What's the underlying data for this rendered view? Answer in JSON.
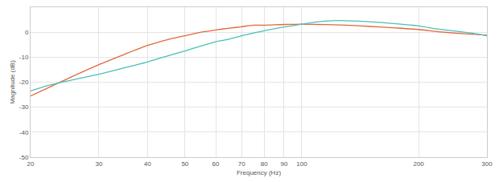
{
  "chart_data": {
    "type": "line",
    "x_label": "Frequency (Hz)",
    "y_label": "Magnitude (dB)",
    "x": [
      20,
      22,
      25,
      30,
      35,
      40,
      45,
      50,
      55,
      60,
      65,
      70,
      75,
      80,
      90,
      100,
      110,
      120,
      130,
      150,
      175,
      200,
      225,
      250,
      275,
      300
    ],
    "series": [
      {
        "color": "#e2683c",
        "values": [
          -25.5,
          -22.5,
          -18.5,
          -13,
          -8.8,
          -5.3,
          -3,
          -1.4,
          0,
          0.9,
          1.6,
          2.2,
          2.8,
          2.8,
          3.1,
          3.2,
          3.1,
          3,
          2.8,
          2.3,
          1.7,
          1.1,
          0.2,
          -0.4,
          -0.8,
          -1.2
        ]
      },
      {
        "color": "#4bbfb8",
        "values": [
          -23.5,
          -21.5,
          -19.5,
          -16.8,
          -14.2,
          -11.9,
          -9.5,
          -7.5,
          -5.5,
          -3.8,
          -2.8,
          -1.4,
          -0.4,
          0.6,
          2.1,
          3.2,
          4.2,
          4.6,
          4.6,
          4.2,
          3.4,
          2.5,
          1.2,
          0.4,
          -0.4,
          -1.4
        ]
      }
    ],
    "xlim": [
      20,
      300
    ],
    "xticks": [
      20,
      30,
      40,
      50,
      60,
      70,
      80,
      90,
      100,
      200,
      300
    ],
    "ylim": [
      -50,
      10
    ],
    "yticks": [
      -50,
      -40,
      -30,
      -20,
      -10,
      0
    ],
    "log": "x",
    "grid": true
  }
}
